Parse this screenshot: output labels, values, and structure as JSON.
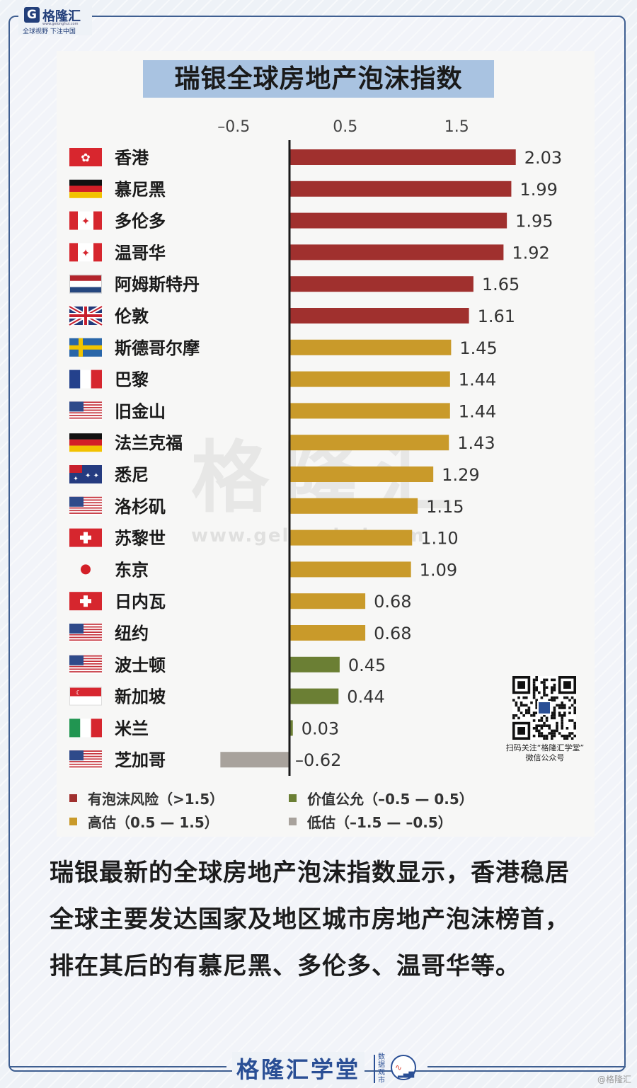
{
  "header": {
    "logo_text": "格隆汇",
    "logo_url": "www.gelonghui.com",
    "slogan": "全球视野 下注中国"
  },
  "colors": {
    "bubble": "#a0302e",
    "overvalued": "#c99a2a",
    "fair": "#6b7f34",
    "undervalued": "#a8a29c",
    "title_bg": "#a9c3e1",
    "frame": "#3f5f91",
    "brand": "#2a4f95"
  },
  "chart_data": {
    "type": "bar",
    "orientation": "horizontal",
    "title": "瑞银全球房地产泡沫指数",
    "x_ticks": [
      "–0.5",
      "0.5",
      "1.5"
    ],
    "x_tick_values": [
      -0.5,
      0.5,
      1.5
    ],
    "xlim": [
      -0.62,
      2.03
    ],
    "categories": [
      "香港",
      "慕尼黑",
      "多伦多",
      "温哥华",
      "阿姆斯特丹",
      "伦敦",
      "斯德哥尔摩",
      "巴黎",
      "旧金山",
      "法兰克福",
      "悉尼",
      "洛杉矶",
      "苏黎世",
      "东京",
      "日内瓦",
      "纽约",
      "波士顿",
      "新加坡",
      "米兰",
      "芝加哥"
    ],
    "values": [
      2.03,
      1.99,
      1.95,
      1.92,
      1.65,
      1.61,
      1.45,
      1.44,
      1.44,
      1.43,
      1.29,
      1.15,
      1.1,
      1.09,
      0.68,
      0.68,
      0.45,
      0.44,
      0.03,
      -0.62
    ],
    "value_labels": [
      "2.03",
      "1.99",
      "1.95",
      "1.92",
      "1.65",
      "1.61",
      "1.45",
      "1.44",
      "1.44",
      "1.43",
      "1.29",
      "1.15",
      "1.10",
      "1.09",
      "0.68",
      "0.68",
      "0.45",
      "0.44",
      "0.03",
      "–0.62"
    ],
    "groups": [
      "bubble",
      "bubble",
      "bubble",
      "bubble",
      "bubble",
      "bubble",
      "overvalued",
      "overvalued",
      "overvalued",
      "overvalued",
      "overvalued",
      "overvalued",
      "overvalued",
      "overvalued",
      "overvalued",
      "overvalued",
      "fair",
      "fair",
      "fair",
      "undervalued"
    ],
    "flags": [
      "hongkong-flag",
      "germany-flag",
      "canada-flag",
      "canada-flag",
      "netherlands-flag",
      "uk-flag",
      "sweden-flag",
      "france-flag",
      "usa-flag",
      "germany-flag",
      "australia-flag",
      "usa-flag",
      "switzerland-flag",
      "japan-flag",
      "switzerland-flag",
      "usa-flag",
      "usa-flag",
      "singapore-flag",
      "italy-flag",
      "usa-flag"
    ],
    "legend": [
      {
        "key": "bubble",
        "label": "有泡沫风险（>1.5）"
      },
      {
        "key": "fair",
        "label": "价值公允（–0.5 — 0.5）"
      },
      {
        "key": "overvalued",
        "label": "高估（0.5 — 1.5）"
      },
      {
        "key": "undervalued",
        "label": "低估（–1.5 — –0.5）"
      }
    ],
    "legend_position": "bottom"
  },
  "watermark": {
    "text": "格隆汇",
    "url": "www.gelonghui.com"
  },
  "qr": {
    "caption_line1": "扫码关注“格隆汇学堂”",
    "caption_line2": "微信公众号"
  },
  "body_text": "瑞银最新的全球房地产泡沫指数显示，香港稳居全球主要发达国家及地区城市房地产泡沫榜首，排在其后的有慕尼黑、多伦多、温哥华等。",
  "footer": {
    "brand": "格隆汇学堂",
    "side_text": "数据观市",
    "credit": "@格隆汇"
  }
}
